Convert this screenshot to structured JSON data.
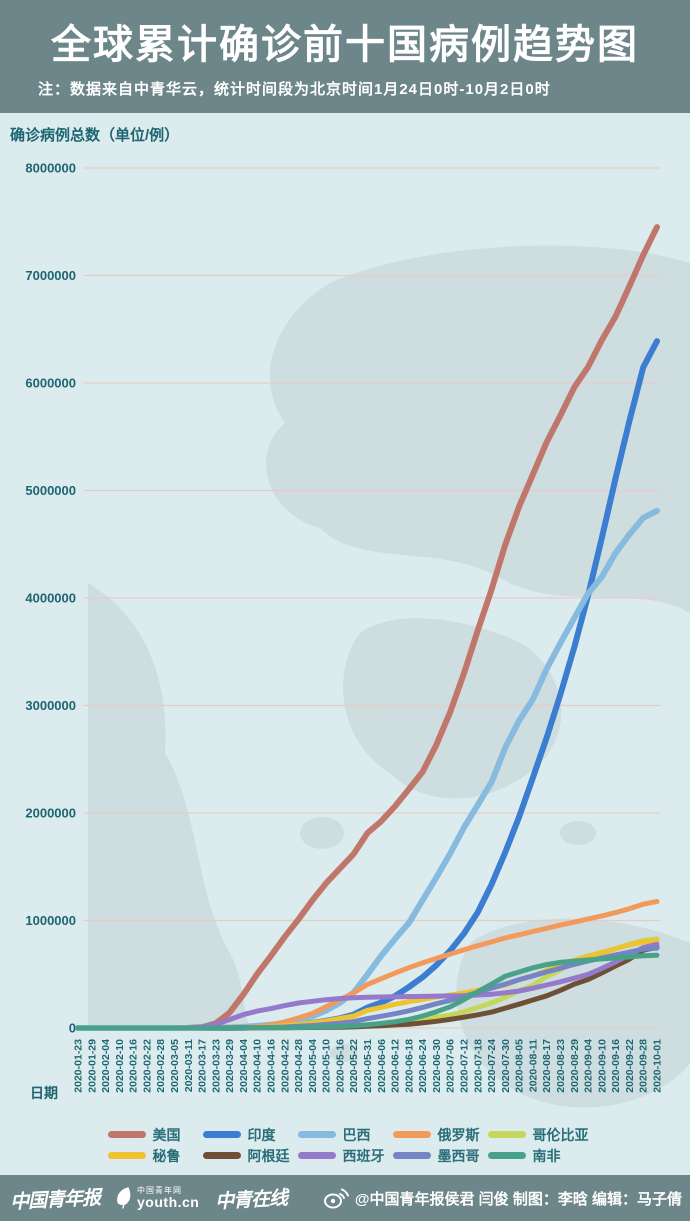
{
  "header": {
    "title": "全球累计确诊前十国病例趋势图",
    "note": "注：数据来自中青华云，统计时间段为北京时间1月24日0时-10月2日0时"
  },
  "colors": {
    "header_bg": "#6c8689",
    "chart_bg": "#dcebed",
    "grid_line": "#e9cbc6",
    "axis_text": "#1e6572",
    "map_land": "#c3d2d3"
  },
  "chart_data": {
    "type": "line",
    "ylabel": "确诊病例总数（单位/例）",
    "xlabel": "日期",
    "ylim": [
      0,
      8000000
    ],
    "yticks": [
      0,
      1000000,
      2000000,
      3000000,
      4000000,
      5000000,
      6000000,
      7000000,
      8000000
    ],
    "grid": true,
    "legend_position": "bottom",
    "x": [
      "2020-01-23",
      "2020-01-29",
      "2020-02-04",
      "2020-02-10",
      "2020-02-16",
      "2020-02-22",
      "2020-02-28",
      "2020-03-05",
      "2020-03-11",
      "2020-03-17",
      "2020-03-23",
      "2020-03-29",
      "2020-04-04",
      "2020-04-10",
      "2020-04-16",
      "2020-04-22",
      "2020-04-28",
      "2020-05-04",
      "2020-05-10",
      "2020-05-16",
      "2020-05-22",
      "2020-05-31",
      "2020-06-06",
      "2020-06-12",
      "2020-06-18",
      "2020-06-24",
      "2020-06-30",
      "2020-07-06",
      "2020-07-12",
      "2020-07-18",
      "2020-07-24",
      "2020-07-30",
      "2020-08-05",
      "2020-08-11",
      "2020-08-17",
      "2020-08-23",
      "2020-08-29",
      "2020-09-04",
      "2020-09-10",
      "2020-09-16",
      "2020-09-22",
      "2020-09-28",
      "2020-10-01"
    ],
    "series": [
      {
        "key": "usa",
        "name": "美国",
        "color": "#c0766b",
        "width": 6,
        "values": [
          0,
          0,
          0,
          0,
          0,
          0,
          0,
          100,
          1300,
          6400,
          44000,
          143000,
          312000,
          503000,
          672000,
          849000,
          1012000,
          1188000,
          1347000,
          1484000,
          1620000,
          1814000,
          1925000,
          2064000,
          2222000,
          2382000,
          2635000,
          2940000,
          3300000,
          3700000,
          4080000,
          4500000,
          4850000,
          5150000,
          5450000,
          5700000,
          5960000,
          6150000,
          6400000,
          6620000,
          6900000,
          7190000,
          7450000
        ]
      },
      {
        "key": "india",
        "name": "印度",
        "color": "#3b7dd0",
        "width": 6,
        "values": [
          0,
          0,
          0,
          0,
          0,
          0,
          0,
          0,
          100,
          200,
          500,
          1000,
          3100,
          7500,
          13000,
          21400,
          31300,
          46400,
          67200,
          90600,
          125000,
          190000,
          236000,
          298000,
          381000,
          473000,
          585000,
          720000,
          879000,
          1077000,
          1337000,
          1638000,
          1964000,
          2329000,
          2702000,
          3106000,
          3542000,
          4023000,
          4562000,
          5115000,
          5646000,
          6145000,
          6390000
        ]
      },
      {
        "key": "brazil",
        "name": "巴西",
        "color": "#87badf",
        "width": 6,
        "values": [
          0,
          0,
          0,
          0,
          0,
          0,
          0,
          0,
          0,
          300,
          2000,
          4300,
          10300,
          19600,
          30400,
          45800,
          73200,
          107800,
          162700,
          233100,
          330900,
          498400,
          672800,
          829900,
          978100,
          1188600,
          1402000,
          1623300,
          1864700,
          2074900,
          2287500,
          2610100,
          2859100,
          3057500,
          3340200,
          3582400,
          3812600,
          4041600,
          4197900,
          4419100,
          4591600,
          4745500,
          4810900
        ]
      },
      {
        "key": "russia",
        "name": "俄罗斯",
        "color": "#f2995c",
        "width": 5,
        "values": [
          0,
          0,
          0,
          0,
          0,
          0,
          0,
          0,
          0,
          100,
          400,
          1500,
          4700,
          12000,
          28000,
          57900,
          93500,
          134600,
          198600,
          262800,
          326400,
          405800,
          458700,
          511400,
          561100,
          606000,
          647800,
          687900,
          727200,
          765400,
          800800,
          838500,
          866600,
          897600,
          927700,
          957000,
          985300,
          1015100,
          1042800,
          1073800,
          1110000,
          1151400,
          1176300
        ]
      },
      {
        "key": "colombia",
        "name": "哥伦比亚",
        "color": "#c5d75b",
        "width": 5,
        "values": [
          0,
          0,
          0,
          0,
          0,
          0,
          0,
          0,
          0,
          100,
          300,
          700,
          1400,
          2500,
          3400,
          4600,
          6200,
          8600,
          11600,
          15000,
          19100,
          29400,
          38000,
          46900,
          60200,
          78000,
          102000,
          120300,
          150400,
          190700,
          233500,
          286000,
          345700,
          397600,
          476700,
          541100,
          607900,
          650100,
          694700,
          736400,
          777500,
          813100,
          829700
        ]
      },
      {
        "key": "peru",
        "name": "秘鲁",
        "color": "#eec32f",
        "width": 5,
        "values": [
          0,
          0,
          0,
          0,
          0,
          0,
          0,
          0,
          100,
          200,
          400,
          700,
          1700,
          5900,
          12500,
          20900,
          31200,
          47400,
          65000,
          88500,
          111000,
          164500,
          191800,
          220700,
          244300,
          264700,
          288500,
          305700,
          326300,
          350900,
          375900,
          400600,
          447600,
          483100,
          535900,
          586700,
          629800,
          670100,
          702800,
          738000,
          772900,
          800100,
          814800
        ]
      },
      {
        "key": "argentina",
        "name": "阿根廷",
        "color": "#6e5037",
        "width": 5,
        "values": [
          0,
          0,
          0,
          0,
          0,
          0,
          0,
          0,
          0,
          100,
          300,
          700,
          1500,
          2000,
          2600,
          3200,
          4100,
          5000,
          5800,
          7800,
          10600,
          16800,
          21000,
          28800,
          35500,
          47200,
          62300,
          80400,
          100100,
          122500,
          148000,
          185400,
          221300,
          260900,
          299100,
          350900,
          408400,
          451200,
          512300,
          577300,
          640100,
          723100,
          751000
        ]
      },
      {
        "key": "spain",
        "name": "西班牙",
        "color": "#9579cb",
        "width": 5,
        "values": [
          0,
          0,
          0,
          0,
          0,
          0,
          100,
          300,
          2300,
          11700,
          33100,
          78800,
          124700,
          157000,
          180700,
          208400,
          232100,
          248000,
          262800,
          274400,
          281900,
          286500,
          288400,
          290300,
          292300,
          294200,
          296700,
          298900,
          300900,
          307300,
          314400,
          327700,
          344100,
          370000,
          400100,
          430000,
          462900,
          498900,
          554100,
          614400,
          682200,
          748300,
          778600
        ]
      },
      {
        "key": "mexico",
        "name": "墨西哥",
        "color": "#7584c5",
        "width": 5,
        "values": [
          0,
          0,
          0,
          0,
          0,
          0,
          0,
          0,
          0,
          100,
          300,
          850,
          1900,
          3400,
          5800,
          9500,
          16800,
          23500,
          33500,
          45000,
          59600,
          87500,
          110000,
          133000,
          159800,
          191400,
          226100,
          256800,
          295300,
          331300,
          370700,
          408400,
          449900,
          485800,
          522200,
          556200,
          591700,
          623100,
          652400,
          680400,
          705300,
          733700,
          743200
        ]
      },
      {
        "key": "south-africa",
        "name": "南非",
        "color": "#49a287",
        "width": 5,
        "values": [
          0,
          0,
          0,
          0,
          0,
          0,
          0,
          0,
          0,
          100,
          300,
          1200,
          1600,
          2000,
          2600,
          3600,
          5000,
          7200,
          10000,
          14400,
          19100,
          30900,
          43400,
          58600,
          80400,
          111800,
          151200,
          196800,
          264200,
          337600,
          408100,
          482200,
          521300,
          559900,
          589900,
          609800,
          622500,
          633000,
          642400,
          651500,
          661200,
          672600,
          676100
        ]
      }
    ]
  },
  "footer": {
    "brand_1": "中国青年报",
    "brand_2_top": "中国青年网",
    "brand_2_main": "youth.cn",
    "brand_3": "中青在线",
    "credit": "@中国青年报侯君 闫俊 制图：李晗 编辑：马子倩"
  }
}
